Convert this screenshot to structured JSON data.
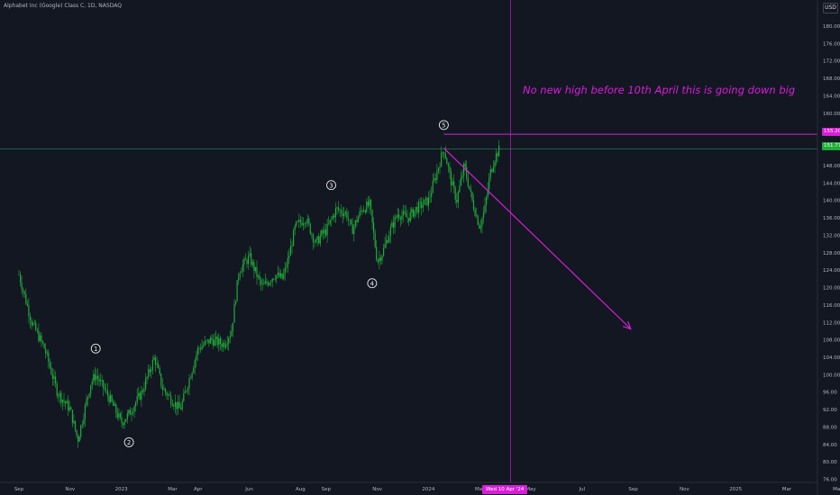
{
  "header": {
    "symbol_title": "Alphabet Inc (Google) Class C, 1D, NASDAQ",
    "currency_button": "USD"
  },
  "annotation": {
    "text": "No new high before 10th April this is going down big",
    "color": "#d81ed8"
  },
  "price_tags": {
    "target_level": "155.20",
    "current_price": "151.77"
  },
  "crosshair_date_label": "Wed 10 Apr '24",
  "colors": {
    "background": "#131722",
    "candles": "#22ab3a",
    "annotation": "#d81ed8",
    "axis_text": "#b2b5be"
  },
  "chart_data": {
    "type": "candlestick",
    "title": "Alphabet Inc (Google) Class C, 1D, NASDAQ",
    "ylim": [
      74,
      184
    ],
    "y_ticks": [
      "76.00",
      "80.00",
      "84.00",
      "88.00",
      "92.00",
      "96.00",
      "100.00",
      "104.00",
      "108.00",
      "112.00",
      "116.00",
      "120.00",
      "124.00",
      "128.00",
      "132.00",
      "136.00",
      "140.00",
      "144.00",
      "148.00",
      "152.00",
      "156.00",
      "160.00",
      "164.00",
      "168.00",
      "172.00",
      "176.00",
      "180.00"
    ],
    "x_ticks": [
      {
        "label": "Sep",
        "t": 0
      },
      {
        "label": "Nov",
        "t": 2
      },
      {
        "label": "2023",
        "t": 4
      },
      {
        "label": "Mar",
        "t": 6
      },
      {
        "label": "Apr",
        "t": 7
      },
      {
        "label": "Jun",
        "t": 9
      },
      {
        "label": "Aug",
        "t": 11
      },
      {
        "label": "Sep",
        "t": 12
      },
      {
        "label": "Nov",
        "t": 14
      },
      {
        "label": "2024",
        "t": 16
      },
      {
        "label": "Mar",
        "t": 18
      },
      {
        "label": "May",
        "t": 20
      },
      {
        "label": "Jul",
        "t": 22
      },
      {
        "label": "Sep",
        "t": 24
      },
      {
        "label": "Nov",
        "t": 26
      },
      {
        "label": "2025",
        "t": 28
      },
      {
        "label": "Mar",
        "t": 30
      },
      {
        "label": "May",
        "t": 32
      }
    ],
    "price_path": [
      [
        0,
        123
      ],
      [
        0.5,
        112
      ],
      [
        1,
        106
      ],
      [
        1.5,
        96
      ],
      [
        2,
        92
      ],
      [
        2.3,
        85
      ],
      [
        2.8,
        98
      ],
      [
        3,
        100
      ],
      [
        3.5,
        95
      ],
      [
        4,
        89
      ],
      [
        4.3,
        91
      ],
      [
        4.8,
        96
      ],
      [
        5.3,
        104
      ],
      [
        5.6,
        97
      ],
      [
        6,
        94
      ],
      [
        6.3,
        92
      ],
      [
        6.7,
        100
      ],
      [
        7,
        106
      ],
      [
        7.5,
        108
      ],
      [
        8,
        107
      ],
      [
        8.3,
        110
      ],
      [
        8.6,
        124
      ],
      [
        9,
        127
      ],
      [
        9.5,
        120
      ],
      [
        10,
        123
      ],
      [
        10.3,
        122
      ],
      [
        10.5,
        126
      ],
      [
        10.8,
        134
      ],
      [
        11.2,
        136
      ],
      [
        11.6,
        130
      ],
      [
        11.8,
        132
      ],
      [
        12,
        133
      ],
      [
        12.4,
        138
      ],
      [
        12.8,
        137
      ],
      [
        13,
        133
      ],
      [
        13.4,
        138
      ],
      [
        13.7,
        139
      ],
      [
        14,
        126
      ],
      [
        14.2,
        128
      ],
      [
        14.5,
        133
      ],
      [
        14.8,
        137
      ],
      [
        15.2,
        136
      ],
      [
        15.5,
        138
      ],
      [
        16,
        140
      ],
      [
        16.3,
        146
      ],
      [
        16.6,
        152
      ],
      [
        16.9,
        144
      ],
      [
        17.1,
        140
      ],
      [
        17.4,
        148
      ],
      [
        17.7,
        140
      ],
      [
        18,
        134
      ],
      [
        18.2,
        138
      ],
      [
        18.4,
        146
      ],
      [
        18.6,
        150
      ],
      [
        18.8,
        152
      ]
    ],
    "wave_labels": [
      {
        "label": "1",
        "t": 3,
        "price": 106
      },
      {
        "label": "2",
        "t": 4.3,
        "price": 84.5
      },
      {
        "label": "3",
        "t": 12.2,
        "price": 143.5
      },
      {
        "label": "4",
        "t": 13.8,
        "price": 121
      },
      {
        "label": "5",
        "t": 16.6,
        "price": 157.3
      }
    ],
    "horizontal_lines": [
      {
        "price": 155.2,
        "from_t": 16.6,
        "style": "magenta"
      },
      {
        "price": 151.77,
        "style": "current-price"
      }
    ],
    "drawn_arrow": {
      "from": {
        "t": 16.6,
        "price": 152
      },
      "to": {
        "t": 23.9,
        "price": 110.5
      }
    },
    "crosshair": {
      "t": 19.2,
      "label": "Wed 10 Apr '24"
    }
  }
}
